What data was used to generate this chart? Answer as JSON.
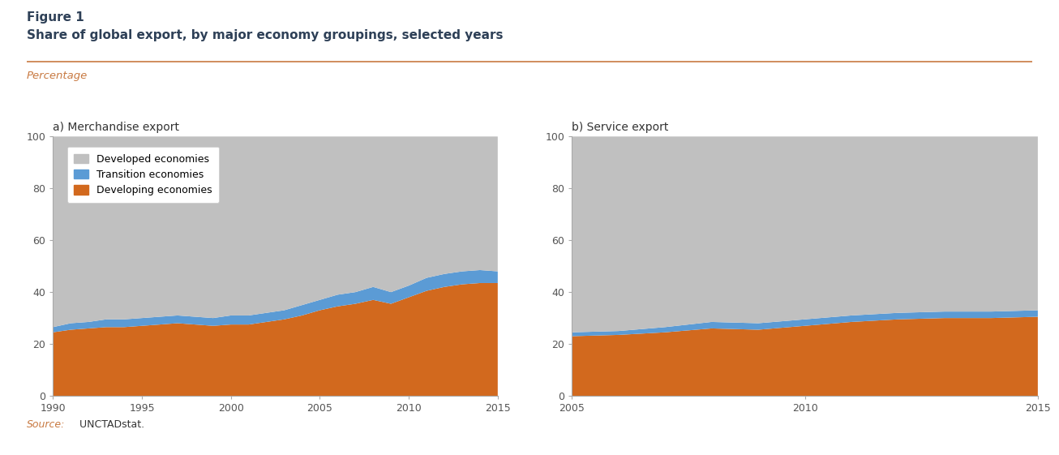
{
  "title_line1": "Figure 1",
  "title_line2": "Share of global export, by major economy groupings, selected years",
  "ylabel": "Percentage",
  "source_label": "Source:",
  "source_text": " UNCTADstat.",
  "merch_years": [
    1990,
    1991,
    1992,
    1993,
    1994,
    1995,
    1996,
    1997,
    1998,
    1999,
    2000,
    2001,
    2002,
    2003,
    2004,
    2005,
    2006,
    2007,
    2008,
    2009,
    2010,
    2011,
    2012,
    2013,
    2014,
    2015
  ],
  "merch_developing": [
    24.5,
    25.5,
    26.0,
    26.5,
    26.5,
    27.0,
    27.5,
    28.0,
    27.5,
    27.0,
    27.5,
    27.5,
    28.5,
    29.5,
    31.0,
    33.0,
    34.5,
    35.5,
    37.0,
    35.5,
    38.0,
    40.5,
    42.0,
    43.0,
    43.5,
    43.5
  ],
  "merch_transition": [
    2.0,
    2.5,
    2.5,
    3.0,
    3.0,
    3.0,
    3.0,
    3.0,
    3.0,
    3.0,
    3.5,
    3.5,
    3.5,
    3.5,
    4.0,
    4.0,
    4.5,
    4.5,
    5.0,
    4.5,
    4.5,
    5.0,
    5.0,
    5.0,
    5.0,
    4.5
  ],
  "serv_years": [
    2005,
    2006,
    2007,
    2008,
    2009,
    2010,
    2011,
    2012,
    2013,
    2014,
    2015
  ],
  "serv_developing": [
    23.0,
    23.5,
    24.5,
    26.0,
    25.5,
    27.0,
    28.5,
    29.5,
    30.0,
    30.0,
    30.5
  ],
  "serv_transition": [
    1.5,
    1.5,
    2.0,
    2.5,
    2.5,
    2.5,
    2.5,
    2.5,
    2.5,
    2.5,
    2.5
  ],
  "color_developing": "#D2691E",
  "color_transition": "#5B9BD5",
  "color_developed": "#C0C0C0",
  "subtitle_a": "a) Merchandise export",
  "subtitle_b": "b) Service export",
  "title_color": "#2E4057",
  "percentage_color": "#C87941",
  "source_label_color": "#C87941",
  "source_text_color": "#333333",
  "orange_line_color": "#C87941",
  "legend_labels": [
    "Developed economies",
    "Transition economies",
    "Developing economies"
  ]
}
